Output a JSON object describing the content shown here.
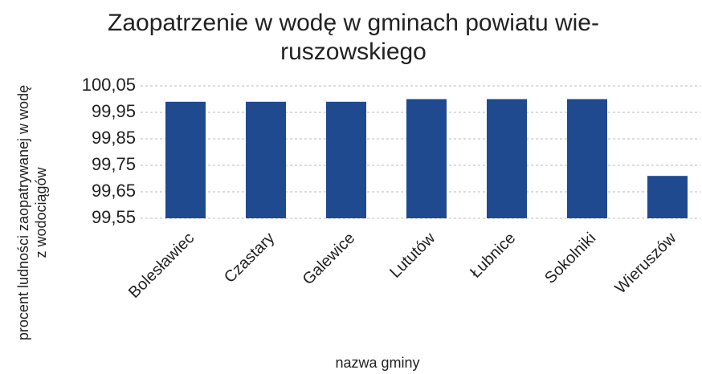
{
  "chart_data": {
    "type": "bar",
    "title": [
      "Zaopatrzenie w wodę w gminach powiatu wie-",
      "ruszowskiego"
    ],
    "y_label": [
      "procent ludności zaopatrywanej w wodę",
      "z wodociągów"
    ],
    "x_label": "nazwa gminy",
    "categories": [
      "Bolesławiec",
      "Czastary",
      "Galewice",
      "Lututów",
      "Łubnice",
      "Sokolniki",
      "Wieruszów"
    ],
    "values": [
      99.99,
      99.99,
      99.99,
      100.0,
      100.0,
      100.0,
      99.71
    ],
    "color": "#1f4a8f",
    "ylim": [
      99.55,
      100.05
    ],
    "yticks": [
      {
        "value": 99.55,
        "label": "99,55"
      },
      {
        "value": 99.65,
        "label": "99,65"
      },
      {
        "value": 99.75,
        "label": "99,75"
      },
      {
        "value": 99.85,
        "label": "99,85"
      },
      {
        "value": 99.95,
        "label": "99,95"
      },
      {
        "value": 100.05,
        "label": "100,05"
      }
    ],
    "grid": true
  }
}
